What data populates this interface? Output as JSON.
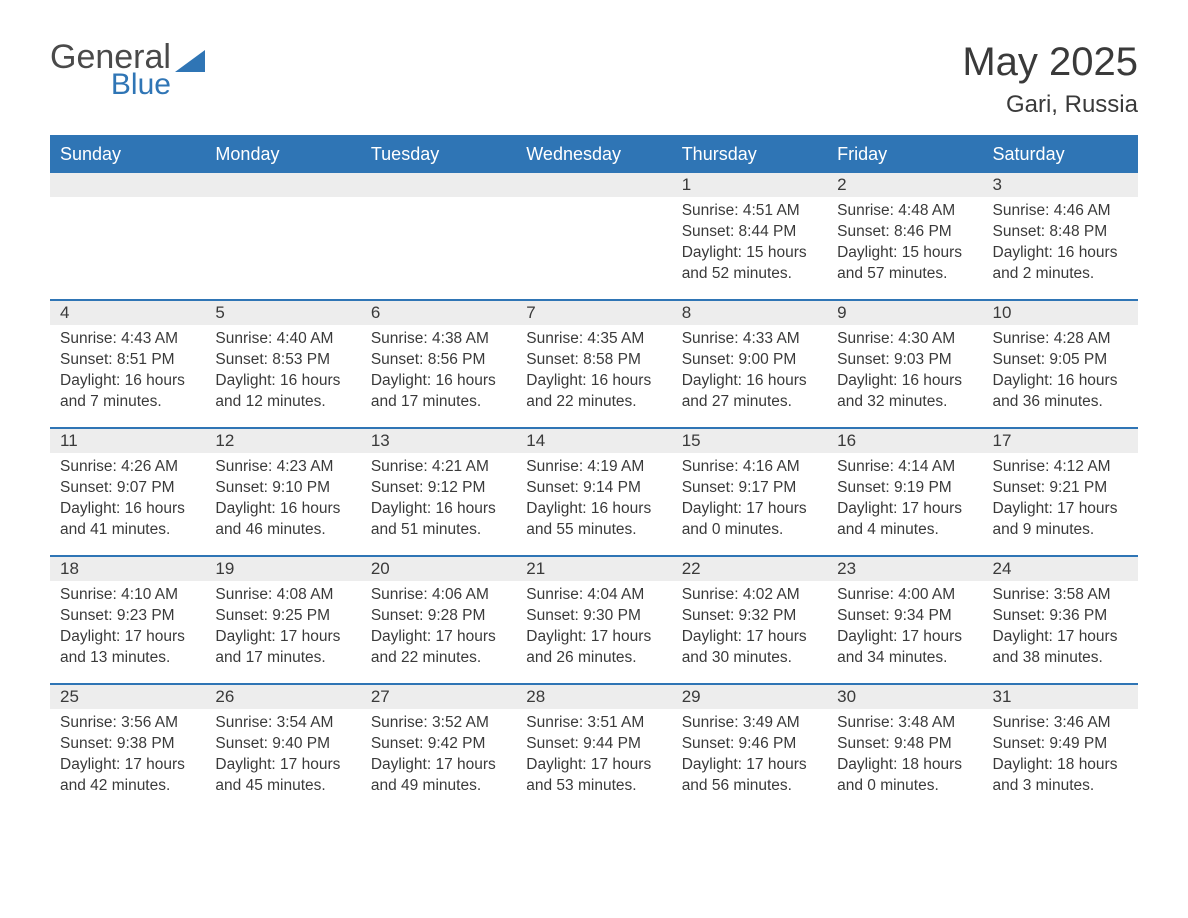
{
  "logo": {
    "general": "General",
    "blue": "Blue",
    "shape_color": "#2f75b5"
  },
  "title": "May 2025",
  "location": "Gari, Russia",
  "header_bg": "#2f75b5",
  "header_text_color": "#ffffff",
  "row_divider_color": "#2f75b5",
  "daynum_bg": "#ededed",
  "text_color": "#3a3a3a",
  "background_color": "#ffffff",
  "font_family": "Arial",
  "weekdays": [
    "Sunday",
    "Monday",
    "Tuesday",
    "Wednesday",
    "Thursday",
    "Friday",
    "Saturday"
  ],
  "weeks": [
    [
      null,
      null,
      null,
      null,
      {
        "d": "1",
        "sr": "4:51 AM",
        "ss": "8:44 PM",
        "dl": "15 hours and 52 minutes."
      },
      {
        "d": "2",
        "sr": "4:48 AM",
        "ss": "8:46 PM",
        "dl": "15 hours and 57 minutes."
      },
      {
        "d": "3",
        "sr": "4:46 AM",
        "ss": "8:48 PM",
        "dl": "16 hours and 2 minutes."
      }
    ],
    [
      {
        "d": "4",
        "sr": "4:43 AM",
        "ss": "8:51 PM",
        "dl": "16 hours and 7 minutes."
      },
      {
        "d": "5",
        "sr": "4:40 AM",
        "ss": "8:53 PM",
        "dl": "16 hours and 12 minutes."
      },
      {
        "d": "6",
        "sr": "4:38 AM",
        "ss": "8:56 PM",
        "dl": "16 hours and 17 minutes."
      },
      {
        "d": "7",
        "sr": "4:35 AM",
        "ss": "8:58 PM",
        "dl": "16 hours and 22 minutes."
      },
      {
        "d": "8",
        "sr": "4:33 AM",
        "ss": "9:00 PM",
        "dl": "16 hours and 27 minutes."
      },
      {
        "d": "9",
        "sr": "4:30 AM",
        "ss": "9:03 PM",
        "dl": "16 hours and 32 minutes."
      },
      {
        "d": "10",
        "sr": "4:28 AM",
        "ss": "9:05 PM",
        "dl": "16 hours and 36 minutes."
      }
    ],
    [
      {
        "d": "11",
        "sr": "4:26 AM",
        "ss": "9:07 PM",
        "dl": "16 hours and 41 minutes."
      },
      {
        "d": "12",
        "sr": "4:23 AM",
        "ss": "9:10 PM",
        "dl": "16 hours and 46 minutes."
      },
      {
        "d": "13",
        "sr": "4:21 AM",
        "ss": "9:12 PM",
        "dl": "16 hours and 51 minutes."
      },
      {
        "d": "14",
        "sr": "4:19 AM",
        "ss": "9:14 PM",
        "dl": "16 hours and 55 minutes."
      },
      {
        "d": "15",
        "sr": "4:16 AM",
        "ss": "9:17 PM",
        "dl": "17 hours and 0 minutes."
      },
      {
        "d": "16",
        "sr": "4:14 AM",
        "ss": "9:19 PM",
        "dl": "17 hours and 4 minutes."
      },
      {
        "d": "17",
        "sr": "4:12 AM",
        "ss": "9:21 PM",
        "dl": "17 hours and 9 minutes."
      }
    ],
    [
      {
        "d": "18",
        "sr": "4:10 AM",
        "ss": "9:23 PM",
        "dl": "17 hours and 13 minutes."
      },
      {
        "d": "19",
        "sr": "4:08 AM",
        "ss": "9:25 PM",
        "dl": "17 hours and 17 minutes."
      },
      {
        "d": "20",
        "sr": "4:06 AM",
        "ss": "9:28 PM",
        "dl": "17 hours and 22 minutes."
      },
      {
        "d": "21",
        "sr": "4:04 AM",
        "ss": "9:30 PM",
        "dl": "17 hours and 26 minutes."
      },
      {
        "d": "22",
        "sr": "4:02 AM",
        "ss": "9:32 PM",
        "dl": "17 hours and 30 minutes."
      },
      {
        "d": "23",
        "sr": "4:00 AM",
        "ss": "9:34 PM",
        "dl": "17 hours and 34 minutes."
      },
      {
        "d": "24",
        "sr": "3:58 AM",
        "ss": "9:36 PM",
        "dl": "17 hours and 38 minutes."
      }
    ],
    [
      {
        "d": "25",
        "sr": "3:56 AM",
        "ss": "9:38 PM",
        "dl": "17 hours and 42 minutes."
      },
      {
        "d": "26",
        "sr": "3:54 AM",
        "ss": "9:40 PM",
        "dl": "17 hours and 45 minutes."
      },
      {
        "d": "27",
        "sr": "3:52 AM",
        "ss": "9:42 PM",
        "dl": "17 hours and 49 minutes."
      },
      {
        "d": "28",
        "sr": "3:51 AM",
        "ss": "9:44 PM",
        "dl": "17 hours and 53 minutes."
      },
      {
        "d": "29",
        "sr": "3:49 AM",
        "ss": "9:46 PM",
        "dl": "17 hours and 56 minutes."
      },
      {
        "d": "30",
        "sr": "3:48 AM",
        "ss": "9:48 PM",
        "dl": "18 hours and 0 minutes."
      },
      {
        "d": "31",
        "sr": "3:46 AM",
        "ss": "9:49 PM",
        "dl": "18 hours and 3 minutes."
      }
    ]
  ],
  "labels": {
    "sunrise": "Sunrise:",
    "sunset": "Sunset:",
    "daylight": "Daylight:"
  }
}
